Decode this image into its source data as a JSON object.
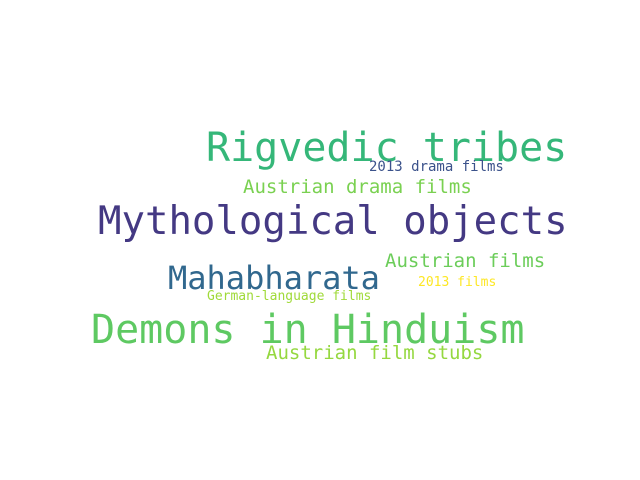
{
  "words": [
    {
      "text": "Rigvedic tribes",
      "color": "#35b779"
    },
    {
      "text": "2013 drama films",
      "color": "#3b528b"
    },
    {
      "text": "Austrian drama films",
      "color": "#7ad151"
    },
    {
      "text": "Mythological objects",
      "color": "#443983"
    },
    {
      "text": "Mahabharata",
      "color": "#31688e"
    },
    {
      "text": "Austrian films",
      "color": "#6ccd5a"
    },
    {
      "text": "2013 films",
      "color": "#fde725"
    },
    {
      "text": "German-language films",
      "color": "#a0da39"
    },
    {
      "text": "Demons in Hinduism",
      "color": "#5ec962"
    },
    {
      "text": "Austrian film stubs",
      "color": "#95d840"
    }
  ]
}
